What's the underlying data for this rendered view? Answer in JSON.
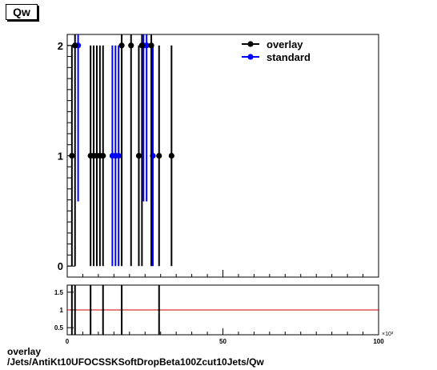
{
  "title": "Qw",
  "caption": {
    "line1": "overlay",
    "line2": "/Jets/AntiKt10UFOCSSKSoftDropBeta100Zcut10Jets/Qw"
  },
  "colors": {
    "overlay": "#000000",
    "standard": "#0000ff",
    "ratio_line": "#cc0000"
  },
  "chart_data": [
    {
      "type": "scatter",
      "panel": "main",
      "xlim": [
        0,
        100000
      ],
      "ylim": [
        -0.1,
        2.1
      ],
      "yticks": [
        0,
        1,
        2
      ],
      "xtick_major": [
        0,
        50,
        100
      ],
      "legend_position": "top-right",
      "legend": [
        "overlay",
        "standard"
      ],
      "series": [
        {
          "name": "overlay",
          "points": [
            {
              "x": 1500,
              "y": 1,
              "err": 1
            },
            {
              "x": 2500,
              "y": 2,
              "err": 2
            },
            {
              "x": 7500,
              "y": 1,
              "err": 1
            },
            {
              "x": 8500,
              "y": 1,
              "err": 1
            },
            {
              "x": 9500,
              "y": 1,
              "err": 1
            },
            {
              "x": 10500,
              "y": 1,
              "err": 1
            },
            {
              "x": 11500,
              "y": 1,
              "err": 1
            },
            {
              "x": 17500,
              "y": 2,
              "err": 2
            },
            {
              "x": 20500,
              "y": 2,
              "err": 2
            },
            {
              "x": 23000,
              "y": 1,
              "err": 1
            },
            {
              "x": 24000,
              "y": 2,
              "err": 2
            },
            {
              "x": 27000,
              "y": 2,
              "err": 2
            },
            {
              "x": 29500,
              "y": 1,
              "err": 1
            },
            {
              "x": 33500,
              "y": 1,
              "err": 1
            }
          ]
        },
        {
          "name": "standard",
          "points": [
            {
              "x": 3500,
              "y": 2,
              "err": 1.414
            },
            {
              "x": 14500,
              "y": 1,
              "err": 1
            },
            {
              "x": 15500,
              "y": 1,
              "err": 1
            },
            {
              "x": 16500,
              "y": 1,
              "err": 1
            },
            {
              "x": 24500,
              "y": 2,
              "err": 1.414
            },
            {
              "x": 25500,
              "y": 2,
              "err": 1.414
            },
            {
              "x": 27500,
              "y": 1,
              "err": 1
            }
          ]
        }
      ]
    },
    {
      "type": "scatter",
      "panel": "ratio",
      "xlim": [
        0,
        100000
      ],
      "ylim": [
        0.3,
        1.7
      ],
      "yticks": [
        0.5,
        1,
        1.5
      ],
      "xticks": [
        0,
        50,
        100
      ],
      "x_exponent_label": "×10³",
      "reference_line": 1,
      "series": [
        {
          "name": "ratio",
          "points": [
            {
              "x": 1500,
              "y": 1,
              "err": 1.4
            },
            {
              "x": 2500,
              "y": 1,
              "err": 1.4
            },
            {
              "x": 7500,
              "y": 1,
              "err": 1.4
            },
            {
              "x": 11500,
              "y": 1,
              "err": 1.4
            },
            {
              "x": 17500,
              "y": 1,
              "err": 1.4
            },
            {
              "x": 29500,
              "y": 1,
              "err": 1.4
            }
          ]
        }
      ]
    }
  ]
}
